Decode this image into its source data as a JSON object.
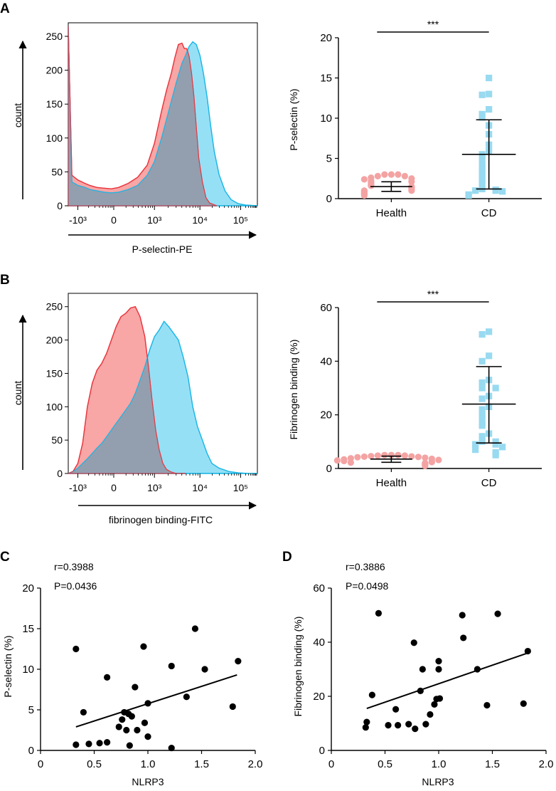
{
  "panel_letters": {
    "A": "A",
    "B": "B",
    "C": "C",
    "D": "D"
  },
  "colors": {
    "health": "#f4a3a3",
    "cd": "#98daf0",
    "red_fill": "#f46b6b",
    "red_line": "#e8363d",
    "blue_fill": "#3fc7ee",
    "blue_line": "#1db7e6",
    "overlap": "#8f9fb0"
  },
  "chart_data": [
    {
      "id": "A-histogram",
      "type": "area",
      "title": "",
      "xlabel": "P-selectin-PE",
      "ylabel": "count",
      "ylim": [
        0,
        270
      ],
      "yticks": [
        0,
        50,
        100,
        150,
        200,
        250
      ],
      "xticks": [
        "-10³",
        "0",
        "10³",
        "10⁴",
        "10⁵"
      ],
      "x_tick_positions": [
        -1.5,
        0,
        1.7,
        3.6,
        5.3
      ],
      "x_range": [
        -1.9,
        6.0
      ],
      "series": [
        {
          "name": "Health",
          "color": "red",
          "x": [
            -1.9,
            -1.75,
            -1.5,
            -1.2,
            -1.0,
            -0.7,
            -0.4,
            -0.1,
            0.2,
            0.6,
            1.0,
            1.4,
            1.7,
            2.0,
            2.2,
            2.4,
            2.55,
            2.7,
            2.85,
            2.95,
            3.05,
            3.15,
            3.25,
            3.35,
            3.45,
            3.55,
            3.7,
            3.85,
            4.0,
            4.3
          ],
          "values": [
            265,
            45,
            38,
            33,
            30,
            27,
            26,
            25,
            27,
            33,
            42,
            60,
            92,
            140,
            170,
            195,
            218,
            238,
            240,
            232,
            232,
            220,
            195,
            160,
            115,
            70,
            35,
            12,
            4,
            0
          ]
        },
        {
          "name": "CD",
          "color": "blue",
          "x": [
            -1.9,
            -1.75,
            -1.5,
            -1.2,
            -1.0,
            -0.7,
            -0.4,
            -0.1,
            0.2,
            0.6,
            1.0,
            1.4,
            1.7,
            2.0,
            2.3,
            2.6,
            2.85,
            3.0,
            3.15,
            3.3,
            3.45,
            3.6,
            3.75,
            3.9,
            4.05,
            4.2,
            4.4,
            4.65,
            4.9,
            5.2,
            5.5,
            6.0
          ],
          "values": [
            265,
            35,
            30,
            27,
            24,
            22,
            20,
            19,
            20,
            24,
            30,
            45,
            65,
            100,
            140,
            180,
            210,
            222,
            235,
            242,
            238,
            222,
            195,
            160,
            118,
            80,
            46,
            22,
            9,
            3,
            1,
            0
          ]
        }
      ]
    },
    {
      "id": "A-scatter",
      "type": "scatter",
      "title": "",
      "ylabel": "P-selectin (%)",
      "categories": [
        "Health",
        "CD"
      ],
      "ylim": [
        0,
        20
      ],
      "yticks": [
        0,
        5,
        10,
        15,
        20
      ],
      "significance": "***",
      "series": [
        {
          "name": "Health",
          "shape": "circle",
          "mean": 1.5,
          "sd_low": 0.9,
          "sd_high": 2.1,
          "values": [
            3.0,
            3.0,
            3.0,
            2.8,
            2.8,
            2.6,
            2.5,
            2.4,
            2.2,
            2.1,
            2.0,
            1.8,
            1.7,
            1.6,
            1.5,
            1.4,
            1.3,
            1.2,
            1.0,
            1.0,
            0.9,
            0.8,
            0.7,
            0.6,
            0.5,
            0.4
          ]
        },
        {
          "name": "CD",
          "shape": "square",
          "mean": 5.5,
          "sd_low": 1.2,
          "sd_high": 9.8,
          "values": [
            15.0,
            13.0,
            12.9,
            11.1,
            10.5,
            10.1,
            9.1,
            8.0,
            6.7,
            5.9,
            5.5,
            4.8,
            4.2,
            3.8,
            3.4,
            3.0,
            2.6,
            2.2,
            1.8,
            1.2,
            1.1,
            1.0,
            1.0,
            0.9,
            0.5,
            0.4
          ]
        }
      ]
    },
    {
      "id": "B-histogram",
      "type": "area",
      "title": "",
      "xlabel": "fibrinogen binding-FITC",
      "ylabel": "count",
      "ylim": [
        0,
        270
      ],
      "yticks": [
        0,
        50,
        100,
        150,
        200,
        250
      ],
      "xticks": [
        "-10³",
        "0",
        "10³",
        "10⁴",
        "10⁵"
      ],
      "x_tick_positions": [
        -1.5,
        0,
        1.7,
        3.6,
        5.3
      ],
      "x_range": [
        -1.9,
        6.0
      ],
      "series": [
        {
          "name": "Health",
          "color": "red",
          "x": [
            -1.9,
            -1.7,
            -1.5,
            -1.3,
            -1.1,
            -0.9,
            -0.7,
            -0.5,
            -0.3,
            -0.1,
            0.1,
            0.3,
            0.5,
            0.7,
            0.9,
            1.1,
            1.3,
            1.45,
            1.6,
            1.75,
            1.9,
            2.05,
            2.2,
            2.4,
            2.6,
            2.8,
            3.0
          ],
          "values": [
            0,
            3,
            15,
            45,
            100,
            135,
            155,
            165,
            180,
            200,
            220,
            235,
            240,
            248,
            250,
            235,
            205,
            160,
            110,
            65,
            35,
            15,
            6,
            2,
            0,
            0,
            0
          ]
        },
        {
          "name": "CD",
          "color": "blue",
          "x": [
            -1.9,
            -1.7,
            -1.5,
            -1.3,
            -1.1,
            -0.9,
            -0.7,
            -0.5,
            -0.3,
            -0.1,
            0.1,
            0.3,
            0.5,
            0.7,
            0.9,
            1.1,
            1.3,
            1.5,
            1.7,
            1.9,
            2.1,
            2.3,
            2.5,
            2.7,
            2.9,
            3.1,
            3.3,
            3.5,
            3.7,
            3.9,
            4.1,
            4.4,
            4.8,
            5.2,
            5.6,
            6.0
          ],
          "values": [
            0,
            3,
            8,
            15,
            22,
            30,
            38,
            45,
            55,
            65,
            75,
            85,
            95,
            105,
            120,
            140,
            160,
            185,
            205,
            215,
            228,
            220,
            210,
            200,
            175,
            145,
            100,
            70,
            50,
            30,
            15,
            8,
            3,
            1,
            0,
            0
          ]
        }
      ]
    },
    {
      "id": "B-scatter",
      "type": "scatter",
      "title": "",
      "ylabel": "Fibrinogen binding (%)",
      "categories": [
        "Health",
        "CD"
      ],
      "ylim": [
        0,
        60
      ],
      "yticks": [
        0,
        20,
        40,
        60
      ],
      "significance": "***",
      "series": [
        {
          "name": "Health",
          "shape": "circle",
          "mean": 3.5,
          "sd_low": 2.3,
          "sd_high": 4.6,
          "values": [
            5.0,
            5.0,
            5.0,
            4.8,
            4.8,
            4.6,
            4.5,
            4.4,
            4.3,
            4.2,
            4.0,
            3.8,
            3.6,
            3.4,
            3.2,
            3.0,
            2.8,
            2.6,
            2.4,
            2.2,
            2.0,
            1.8,
            1.6,
            1.4,
            1.2,
            1.0
          ]
        },
        {
          "name": "CD",
          "shape": "square",
          "mean": 24,
          "sd_low": 9.5,
          "sd_high": 38,
          "values": [
            51,
            50,
            42,
            40,
            33,
            32,
            30,
            30,
            27,
            26,
            23,
            22,
            20,
            19,
            17,
            16,
            13,
            12,
            10,
            10,
            9,
            9,
            8,
            7,
            6,
            5
          ]
        }
      ]
    },
    {
      "id": "C-correlation",
      "type": "scatter",
      "title": "",
      "xlabel": "NLRP3",
      "ylabel": "P-selectin (%)",
      "xlim": [
        0,
        2.0
      ],
      "ylim": [
        0,
        20
      ],
      "xticks": [
        0,
        0.5,
        1.0,
        1.5,
        2.0
      ],
      "xtick_labels": [
        "0",
        "0.5",
        "1.0",
        "1.5",
        "2.0"
      ],
      "yticks": [
        0,
        5,
        10,
        15,
        20
      ],
      "annotation_r": "r=0.3988",
      "annotation_p": "P=0.0436",
      "fit_line": {
        "x": [
          0.33,
          1.83
        ],
        "y": [
          2.9,
          9.3
        ]
      },
      "points": [
        [
          0.33,
          12.5
        ],
        [
          0.33,
          0.7
        ],
        [
          0.4,
          4.7
        ],
        [
          0.45,
          0.8
        ],
        [
          0.55,
          0.9
        ],
        [
          0.62,
          9.0
        ],
        [
          0.62,
          1.0
        ],
        [
          0.73,
          2.9
        ],
        [
          0.76,
          3.8
        ],
        [
          0.78,
          4.7
        ],
        [
          0.8,
          2.5
        ],
        [
          0.82,
          4.5
        ],
        [
          0.85,
          4.2
        ],
        [
          0.83,
          0.6
        ],
        [
          0.88,
          7.8
        ],
        [
          0.9,
          2.5
        ],
        [
          0.96,
          12.8
        ],
        [
          0.97,
          3.4
        ],
        [
          1.0,
          5.8
        ],
        [
          1.0,
          1.7
        ],
        [
          1.22,
          10.4
        ],
        [
          1.22,
          0.3
        ],
        [
          1.36,
          6.6
        ],
        [
          1.44,
          15.0
        ],
        [
          1.53,
          10.0
        ],
        [
          1.79,
          5.4
        ],
        [
          1.84,
          11.0
        ]
      ]
    },
    {
      "id": "D-correlation",
      "type": "scatter",
      "title": "",
      "xlabel": "NLRP3",
      "ylabel": "Fibrinogen binding (%)",
      "xlim": [
        0,
        2.0
      ],
      "ylim": [
        0,
        60
      ],
      "xticks": [
        0,
        0.5,
        1.0,
        1.5,
        2.0
      ],
      "xtick_labels": [
        "0",
        "0.5",
        "1.0",
        "1.5",
        "2.0"
      ],
      "yticks": [
        0,
        20,
        40,
        60
      ],
      "annotation_r": "r=0.3886",
      "annotation_p": "P=0.0498",
      "fit_line": {
        "x": [
          0.33,
          1.83
        ],
        "y": [
          15.5,
          36
        ]
      },
      "points": [
        [
          0.32,
          8.5
        ],
        [
          0.33,
          10.5
        ],
        [
          0.38,
          20.5
        ],
        [
          0.44,
          50.7
        ],
        [
          0.53,
          9.3
        ],
        [
          0.6,
          15.2
        ],
        [
          0.62,
          9.3
        ],
        [
          0.72,
          9.7
        ],
        [
          0.77,
          39.8
        ],
        [
          0.78,
          8.0
        ],
        [
          0.83,
          22.0
        ],
        [
          0.85,
          30.0
        ],
        [
          0.88,
          9.7
        ],
        [
          0.92,
          13.3
        ],
        [
          0.96,
          17.0
        ],
        [
          0.98,
          19.0
        ],
        [
          1.0,
          33.0
        ],
        [
          1.0,
          30.0
        ],
        [
          1.01,
          19.2
        ],
        [
          1.22,
          50.0
        ],
        [
          1.23,
          41.6
        ],
        [
          1.36,
          30.0
        ],
        [
          1.45,
          16.7
        ],
        [
          1.55,
          50.5
        ],
        [
          1.79,
          17.3
        ],
        [
          1.83,
          36.7
        ]
      ]
    }
  ]
}
